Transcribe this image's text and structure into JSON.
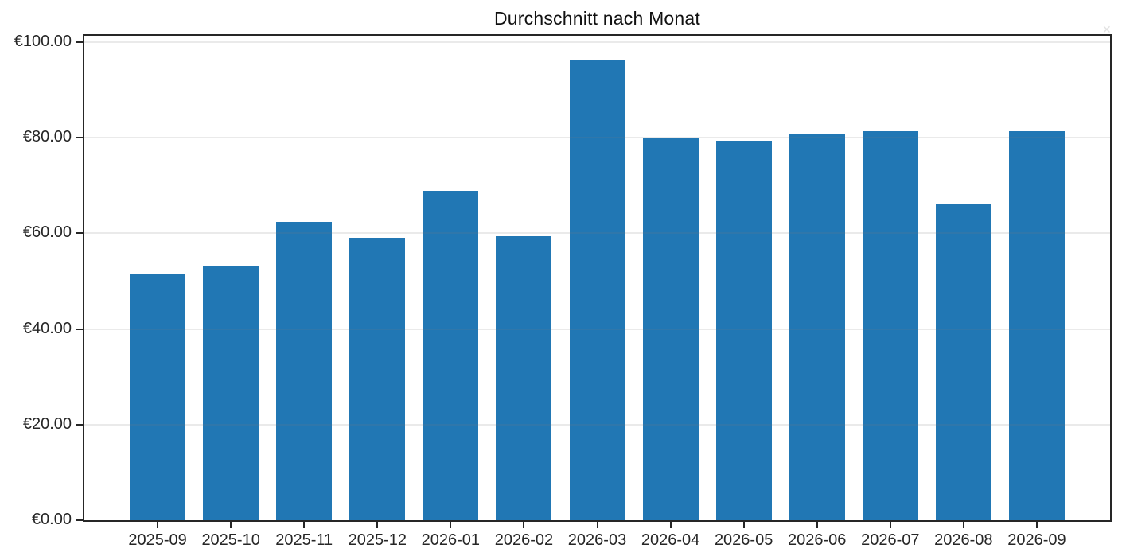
{
  "figure": {
    "background": "#ffffff"
  },
  "chart_data": {
    "type": "bar",
    "title": "Durchschnitt nach Monat",
    "categories": [
      "2025-09",
      "2025-10",
      "2025-11",
      "2025-12",
      "2026-01",
      "2026-02",
      "2026-03",
      "2026-04",
      "2026-05",
      "2026-06",
      "2026-07",
      "2026-08",
      "2026-09"
    ],
    "values": [
      51.4,
      53.0,
      62.4,
      59.1,
      68.9,
      59.4,
      96.3,
      80.0,
      79.4,
      80.6,
      81.4,
      66.0,
      81.3
    ],
    "xlabel": "",
    "ylabel": "",
    "ylim": [
      0,
      101.3
    ],
    "yticks": [
      0,
      20,
      40,
      60,
      80,
      100
    ],
    "ytick_labels": [
      "€0.00",
      "€20.00",
      "€40.00",
      "€60.00",
      "€80.00",
      "€100.00"
    ],
    "grid": "horizontal",
    "legend": "none",
    "bar_color": "#2177b4",
    "axis_color": "#262626",
    "gridline_color": "rgba(125,125,125,0.16)",
    "faint_corner_mark": "✕"
  }
}
